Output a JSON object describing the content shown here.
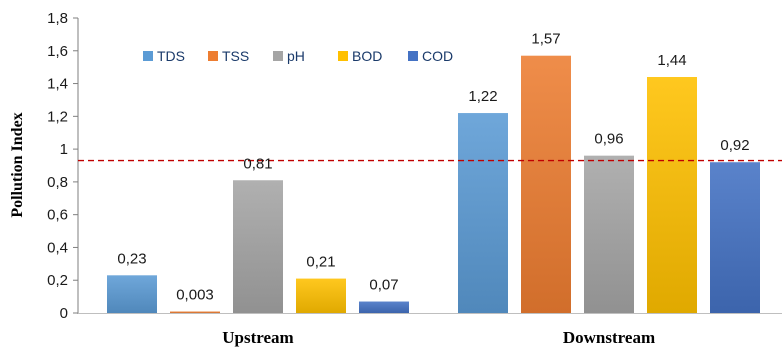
{
  "chart_data": {
    "type": "bar",
    "title": "",
    "xlabel": "",
    "ylabel": "Pollution Index",
    "ylim": [
      0,
      1.8
    ],
    "yticks": [
      "0",
      "0,2",
      "0,4",
      "0,6",
      "0,8",
      "1",
      "1,2",
      "1,4",
      "1,6",
      "1,8"
    ],
    "categories": [
      "Upstream",
      "Downstream"
    ],
    "series": [
      {
        "name": "TDS",
        "values": [
          0.23,
          1.22
        ],
        "labels": [
          "0,23",
          "1,22"
        ],
        "color": "#5b9bd5"
      },
      {
        "name": "TSS",
        "values": [
          0.003,
          1.57
        ],
        "labels": [
          "0,003",
          "1,57"
        ],
        "color": "#ed7d31"
      },
      {
        "name": "pH",
        "values": [
          0.81,
          0.96
        ],
        "labels": [
          "0,81",
          "0,96"
        ],
        "color": "#a5a5a5"
      },
      {
        "name": "BOD",
        "values": [
          0.21,
          1.44
        ],
        "labels": [
          "0,21",
          "1,44"
        ],
        "color": "#ffc000"
      },
      {
        "name": "COD",
        "values": [
          0.07,
          0.92
        ],
        "labels": [
          "0,07",
          "0,92"
        ],
        "color": "#4472c4"
      }
    ],
    "reference_line": {
      "value": 0.93,
      "style": "dashed",
      "color": "#c00000"
    },
    "legend": "top-left",
    "grid": false
  }
}
